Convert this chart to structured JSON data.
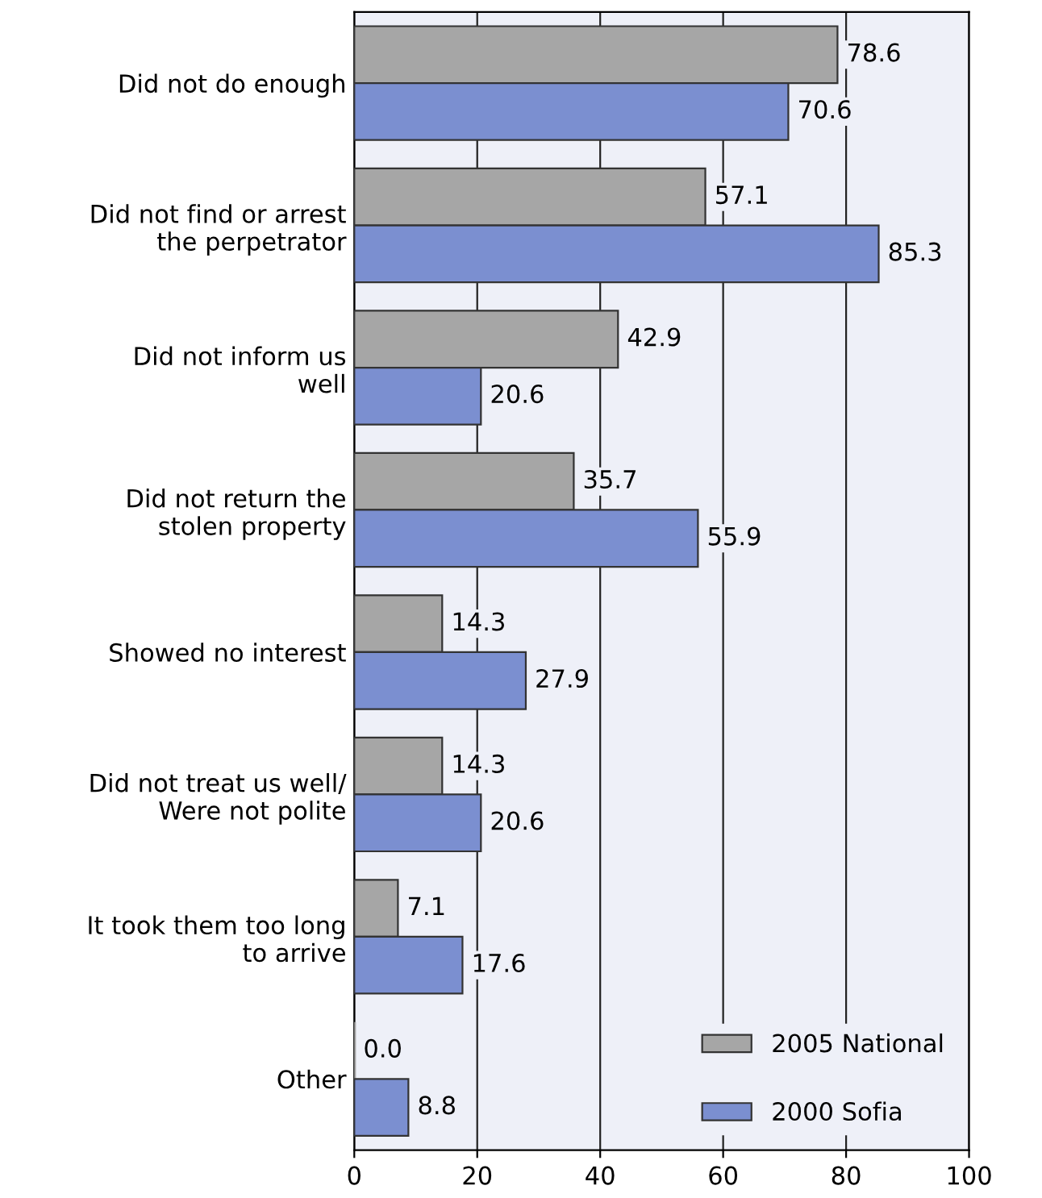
{
  "chart_data": {
    "type": "bar",
    "orientation": "horizontal",
    "categories": [
      "Did not do enough",
      "Did not find or arrest\nthe perpetrator",
      "Did not inform us\nwell",
      "Did not return the\nstolen property",
      "Showed no interest",
      "Did not treat us well/\nWere not polite",
      "It took them too long\nto arrive",
      "Other"
    ],
    "series": [
      {
        "name": "2005 National",
        "color": "#a6a6a6",
        "values": [
          78.6,
          57.1,
          42.9,
          35.7,
          14.3,
          14.3,
          7.1,
          0.0
        ],
        "value_labels": [
          "78.6",
          "57.1",
          "42.9",
          "35.7",
          "14.3",
          "14.3",
          "7.1",
          "0.0"
        ]
      },
      {
        "name": "2000 Sofia",
        "color": "#7b8fd0",
        "values": [
          70.6,
          85.3,
          20.6,
          55.9,
          27.9,
          20.6,
          17.6,
          8.8
        ],
        "value_labels": [
          "70.6",
          "85.3",
          "20.6",
          "55.9",
          "27.9",
          "20.6",
          "17.6",
          "8.8"
        ]
      }
    ],
    "xlim": [
      0,
      100
    ],
    "xticks": [
      0,
      20,
      40,
      60,
      80,
      100
    ],
    "grid": "x",
    "legend": "bottom right"
  }
}
